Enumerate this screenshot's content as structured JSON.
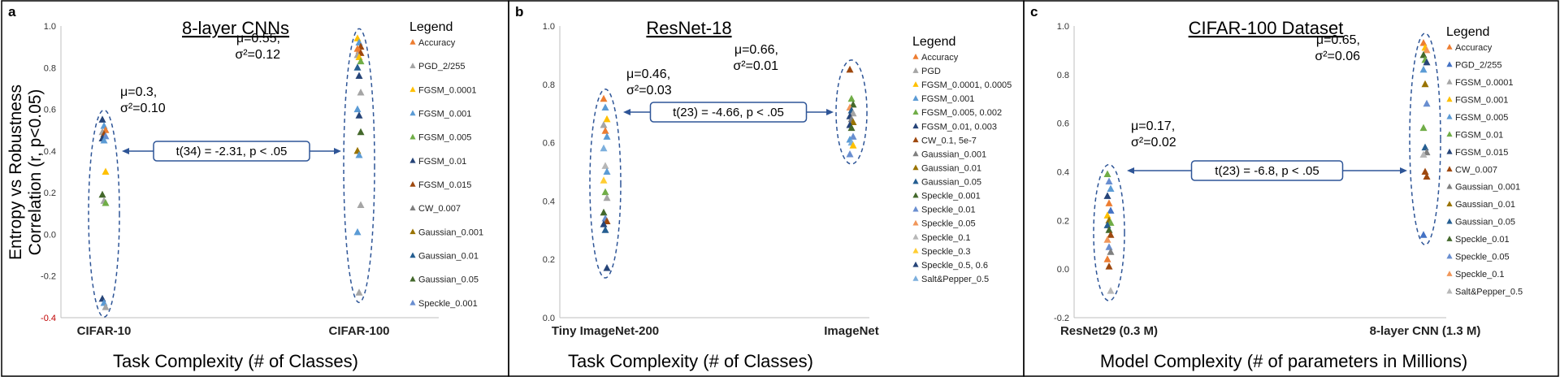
{
  "shared": {
    "ylabel_line1": "Entropy vs Robustness",
    "ylabel_line2": "Correlation (r, p<0.05)"
  },
  "chart_data": [
    {
      "type": "scatter",
      "panel_letter": "a",
      "title": "8-layer CNNs",
      "xlabel": "Task Complexity (# of Classes)",
      "categories": [
        "CIFAR-10",
        "CIFAR-100"
      ],
      "ylim": [
        -0.4,
        1.0
      ],
      "yticks": [
        "-0.4",
        "-0.2",
        "0.0",
        "0.2",
        "0.4",
        "0.6",
        "0.8",
        "1.0"
      ],
      "grid": false,
      "legend_title": "Legend",
      "legend_placement": "right",
      "legend": [
        {
          "label": "Accuracy",
          "color": "#ED7D31"
        },
        {
          "label": "PGD_2/255",
          "color": "#A5A5A5"
        },
        {
          "label": "FGSM_0.0001",
          "color": "#FFC000"
        },
        {
          "label": "FGSM_0.001",
          "color": "#5B9BD5"
        },
        {
          "label": "FGSM_0.005",
          "color": "#70AD47"
        },
        {
          "label": "FGSM_0.01",
          "color": "#264478"
        },
        {
          "label": "FGSM_0.015",
          "color": "#9E480E"
        },
        {
          "label": "CW_0.007",
          "color": "#7F7F7F"
        },
        {
          "label": "Gaussian_0.001",
          "color": "#997300"
        },
        {
          "label": "Gaussian_0.01",
          "color": "#255E91"
        },
        {
          "label": "Gaussian_0.05",
          "color": "#43682B"
        },
        {
          "label": "Speckle_0.001",
          "color": "#698ED0"
        }
      ],
      "groups": [
        {
          "values": [
            0.55,
            0.52,
            0.5,
            0.49,
            0.48,
            0.47,
            0.46,
            0.45,
            0.3,
            0.19,
            0.16,
            0.15,
            -0.31,
            -0.33,
            -0.35
          ],
          "colors": [
            "#264478",
            "#5B9BD5",
            "#ED7D31",
            "#A5A5A5",
            "#9E480E",
            "#698ED0",
            "#264478",
            "#5B9BD5",
            "#FFC000",
            "#43682B",
            "#A5A5A5",
            "#70AD47",
            "#264478",
            "#5B9BD5",
            "#A5A5A5"
          ]
        },
        {
          "values": [
            0.94,
            0.92,
            0.9,
            0.89,
            0.88,
            0.87,
            0.86,
            0.85,
            0.83,
            0.8,
            0.76,
            0.68,
            0.6,
            0.57,
            0.49,
            0.4,
            0.38,
            0.14,
            0.01,
            -0.28
          ],
          "colors": [
            "#FFC000",
            "#5B9BD5",
            "#9E480E",
            "#ED7D31",
            "#ED7D31",
            "#9E480E",
            "#A5A5A5",
            "#FFC000",
            "#70AD47",
            "#255E91",
            "#264478",
            "#A5A5A5",
            "#5B9BD5",
            "#264478",
            "#43682B",
            "#997300",
            "#5B9BD5",
            "#A5A5A5",
            "#5B9BD5",
            "#A5A5A5"
          ]
        }
      ],
      "annotations": {
        "g1_stats": [
          "μ=0.3,",
          "σ²=0.10"
        ],
        "g2_stats": [
          "μ=0.55,",
          "σ²=0.12"
        ],
        "ttest": "t(34) = -2.31, p < .05"
      }
    },
    {
      "type": "scatter",
      "panel_letter": "b",
      "title": "ResNet-18",
      "xlabel": "Task Complexity (# of Classes)",
      "categories": [
        "Tiny ImageNet-200",
        "ImageNet"
      ],
      "ylim": [
        0.0,
        1.0
      ],
      "yticks": [
        "0.0",
        "0.2",
        "0.4",
        "0.6",
        "0.8",
        "1.0"
      ],
      "grid": false,
      "legend_title": "Legend",
      "legend_placement": "right",
      "legend": [
        {
          "label": "Accuracy",
          "color": "#ED7D31"
        },
        {
          "label": "PGD",
          "color": "#A5A5A5"
        },
        {
          "label": "FGSM_0.0001,  0.0005",
          "color": "#FFC000"
        },
        {
          "label": "FGSM_0.001",
          "color": "#5B9BD5"
        },
        {
          "label": "FGSM_0.005, 0.002",
          "color": "#70AD47"
        },
        {
          "label": "FGSM_0.01, 0.003",
          "color": "#264478"
        },
        {
          "label": "CW_0.1, 5e-7",
          "color": "#9E480E"
        },
        {
          "label": "Gaussian_0.001",
          "color": "#7F7F7F"
        },
        {
          "label": "Gaussian_0.01",
          "color": "#997300"
        },
        {
          "label": "Gaussian_0.05",
          "color": "#255E91"
        },
        {
          "label": "Speckle_0.001",
          "color": "#43682B"
        },
        {
          "label": "Speckle_0.01",
          "color": "#698ED0"
        },
        {
          "label": "Speckle_0.05",
          "color": "#F1975A"
        },
        {
          "label": "Speckle_0.1",
          "color": "#B7B7B7"
        },
        {
          "label": "Speckle_0.3",
          "color": "#FFCD33"
        },
        {
          "label": "Speckle_0.5, 0.6",
          "color": "#264478"
        },
        {
          "label": "Salt&Pepper_0.5",
          "color": "#7CAFDD"
        }
      ],
      "groups": [
        {
          "values": [
            0.75,
            0.72,
            0.68,
            0.66,
            0.64,
            0.62,
            0.58,
            0.52,
            0.5,
            0.47,
            0.43,
            0.41,
            0.36,
            0.34,
            0.33,
            0.32,
            0.3,
            0.17
          ],
          "colors": [
            "#ED7D31",
            "#5B9BD5",
            "#FFC000",
            "#A5A5A5",
            "#ED7D31",
            "#5B9BD5",
            "#7CAFDD",
            "#B7B7B7",
            "#5B9BD5",
            "#FFCD33",
            "#70AD47",
            "#A5A5A5",
            "#43682B",
            "#698ED0",
            "#9E480E",
            "#264478",
            "#255E91",
            "#264478"
          ]
        },
        {
          "values": [
            0.85,
            0.75,
            0.73,
            0.72,
            0.71,
            0.7,
            0.69,
            0.68,
            0.67,
            0.66,
            0.65,
            0.62,
            0.61,
            0.6,
            0.59,
            0.56
          ],
          "colors": [
            "#9E480E",
            "#70AD47",
            "#43682B",
            "#F1975A",
            "#255E91",
            "#A5A5A5",
            "#264478",
            "#7F7F7F",
            "#997300",
            "#264478",
            "#43682B",
            "#698ED0",
            "#5B9BD5",
            "#7CAFDD",
            "#FFC000",
            "#698ED0"
          ]
        }
      ],
      "annotations": {
        "g1_stats": [
          "μ=0.46,",
          "σ²=0.03"
        ],
        "g2_stats": [
          "μ=0.66,",
          "σ²=0.01"
        ],
        "ttest": "t(23) = -4.66, p < .05"
      }
    },
    {
      "type": "scatter",
      "panel_letter": "c",
      "title": "CIFAR-100 Dataset",
      "xlabel": "Model Complexity (# of parameters in Millions)",
      "categories": [
        "ResNet29 (0.3 M)",
        "8-layer CNN (1.3 M)"
      ],
      "ylim": [
        -0.2,
        1.0
      ],
      "yticks": [
        "-0.2",
        "0.0",
        "0.2",
        "0.4",
        "0.6",
        "0.8",
        "1.0"
      ],
      "grid": false,
      "legend_title": "Legend",
      "legend_placement": "right",
      "legend": [
        {
          "label": "Accuracy",
          "color": "#ED7D31"
        },
        {
          "label": "PGD_2/255",
          "color": "#4472C4"
        },
        {
          "label": "FGSM_0.0001",
          "color": "#A5A5A5"
        },
        {
          "label": "FGSM_0.001",
          "color": "#FFC000"
        },
        {
          "label": "FGSM_0.005",
          "color": "#5B9BD5"
        },
        {
          "label": "FGSM_0.01",
          "color": "#70AD47"
        },
        {
          "label": "FGSM_0.015",
          "color": "#264478"
        },
        {
          "label": "CW_0.007",
          "color": "#9E480E"
        },
        {
          "label": "Gaussian_0.001",
          "color": "#7F7F7F"
        },
        {
          "label": "Gaussian_0.01",
          "color": "#997300"
        },
        {
          "label": "Gaussian_0.05",
          "color": "#255E91"
        },
        {
          "label": "Speckle_0.01",
          "color": "#43682B"
        },
        {
          "label": "Speckle_0.05",
          "color": "#698ED0"
        },
        {
          "label": "Speckle_0.1",
          "color": "#F1975A"
        },
        {
          "label": "Salt&Pepper_0.5",
          "color": "#B7B7B7"
        }
      ],
      "groups": [
        {
          "values": [
            0.39,
            0.36,
            0.33,
            0.3,
            0.27,
            0.24,
            0.22,
            0.2,
            0.19,
            0.18,
            0.16,
            0.14,
            0.12,
            0.09,
            0.07,
            0.04,
            0.01,
            -0.09
          ],
          "colors": [
            "#70AD47",
            "#698ED0",
            "#5B9BD5",
            "#264478",
            "#ED7D31",
            "#4472C4",
            "#FFC000",
            "#997300",
            "#70AD47",
            "#255E91",
            "#43682B",
            "#9E480E",
            "#F1975A",
            "#698ED0",
            "#7F7F7F",
            "#ED7D31",
            "#9E480E",
            "#B7B7B7"
          ]
        },
        {
          "values": [
            0.93,
            0.91,
            0.9,
            0.88,
            0.86,
            0.85,
            0.82,
            0.76,
            0.68,
            0.58,
            0.5,
            0.48,
            0.47,
            0.4,
            0.38,
            0.14
          ],
          "colors": [
            "#ED7D31",
            "#FFC000",
            "#F1975A",
            "#43682B",
            "#70AD47",
            "#264478",
            "#5B9BD5",
            "#997300",
            "#698ED0",
            "#70AD47",
            "#255E91",
            "#7F7F7F",
            "#B7B7B7",
            "#9E480E",
            "#9E480E",
            "#4472C4"
          ]
        }
      ],
      "annotations": {
        "g1_stats": [
          "μ=0.17,",
          "σ²=0.02"
        ],
        "g2_stats": [
          "μ=0.65,",
          "σ²=0.06"
        ],
        "ttest": "t(23) = -6.8, p < .05"
      }
    }
  ]
}
